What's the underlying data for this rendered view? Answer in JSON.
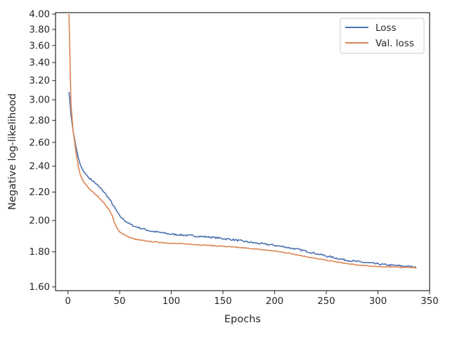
{
  "chart_data": {
    "type": "line",
    "title": "",
    "xlabel": "Epochs",
    "ylabel": "Negative log-likelihood",
    "xlim": [
      -12,
      350
    ],
    "ylim": [
      1.58,
      4.02
    ],
    "yscale": "log",
    "grid": false,
    "legend_position": "top-right",
    "xticks": [
      0,
      50,
      100,
      150,
      200,
      250,
      300,
      350
    ],
    "xtick_labels": [
      "0",
      "50",
      "100",
      "150",
      "200",
      "250",
      "300",
      "350"
    ],
    "yticks": [
      1.6,
      1.8,
      2.0,
      2.2,
      2.4,
      2.6,
      2.8,
      3.0,
      3.2,
      3.4,
      3.6,
      3.8,
      4.0
    ],
    "ytick_labels": [
      "1.60",
      "1.80",
      "2.00",
      "2.20",
      "2.40",
      "2.60",
      "2.80",
      "3.00",
      "3.20",
      "3.40",
      "3.60",
      "3.80",
      "4.00"
    ],
    "series": [
      {
        "name": "Loss",
        "color": "#4c72b0",
        "x": [
          1,
          3,
          5,
          8,
          10,
          12,
          15,
          18,
          20,
          25,
          30,
          35,
          40,
          45,
          50,
          55,
          60,
          65,
          70,
          75,
          80,
          90,
          100,
          110,
          120,
          130,
          140,
          150,
          160,
          170,
          180,
          190,
          200,
          210,
          220,
          230,
          240,
          250,
          260,
          270,
          280,
          290,
          300,
          310,
          320,
          330,
          337
        ],
        "y": [
          3.08,
          2.85,
          2.7,
          2.55,
          2.47,
          2.41,
          2.36,
          2.33,
          2.31,
          2.28,
          2.24,
          2.2,
          2.15,
          2.09,
          2.03,
          2.0,
          1.975,
          1.96,
          1.95,
          1.94,
          1.93,
          1.92,
          1.91,
          1.905,
          1.9,
          1.895,
          1.89,
          1.882,
          1.875,
          1.865,
          1.855,
          1.848,
          1.84,
          1.83,
          1.818,
          1.805,
          1.79,
          1.775,
          1.762,
          1.75,
          1.742,
          1.735,
          1.728,
          1.722,
          1.718,
          1.714,
          1.708
        ]
      },
      {
        "name": "Val. loss",
        "color": "#dd8452",
        "x": [
          1,
          2,
          3,
          5,
          8,
          10,
          12,
          15,
          18,
          20,
          25,
          30,
          35,
          40,
          43,
          45,
          48,
          50,
          55,
          60,
          65,
          70,
          80,
          90,
          100,
          110,
          120,
          130,
          140,
          150,
          160,
          170,
          180,
          190,
          200,
          210,
          220,
          230,
          240,
          250,
          260,
          270,
          280,
          290,
          300,
          310,
          320,
          330,
          337
        ],
        "y": [
          4.0,
          3.4,
          2.95,
          2.7,
          2.5,
          2.4,
          2.33,
          2.28,
          2.25,
          2.23,
          2.195,
          2.16,
          2.12,
          2.07,
          2.03,
          1.985,
          1.945,
          1.925,
          1.905,
          1.888,
          1.878,
          1.872,
          1.863,
          1.858,
          1.852,
          1.85,
          1.846,
          1.842,
          1.838,
          1.834,
          1.829,
          1.824,
          1.818,
          1.812,
          1.805,
          1.796,
          1.785,
          1.772,
          1.76,
          1.75,
          1.74,
          1.73,
          1.722,
          1.717,
          1.713,
          1.711,
          1.71,
          1.709,
          1.708
        ]
      }
    ]
  }
}
